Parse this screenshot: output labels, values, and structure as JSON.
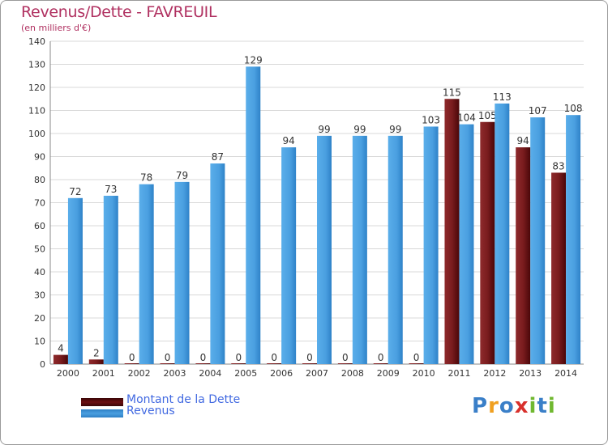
{
  "header": {
    "title": "Revenus/Dette - FAVREUIL",
    "subtitle": "(en milliers d'€)"
  },
  "legend": {
    "items": [
      {
        "label": "Montant de la Dette",
        "color": "#6b0f12"
      },
      {
        "label": "Revenus",
        "color": "#4a9fe0"
      }
    ]
  },
  "logo": {
    "text": "Proxiti",
    "letter_colors": [
      "#3a7fc8",
      "#f0a020",
      "#3a7fc8",
      "#d8302c",
      "#70b830",
      "#3a7fc8",
      "#70b830"
    ]
  },
  "chart_data": {
    "type": "bar",
    "title": "Revenus/Dette - FAVREUIL",
    "subtitle": "(en milliers d'€)",
    "xlabel": "",
    "ylabel": "",
    "ylim": [
      0,
      140
    ],
    "yticks": [
      0,
      10,
      20,
      30,
      40,
      50,
      60,
      70,
      80,
      90,
      100,
      110,
      120,
      130,
      140
    ],
    "grid": true,
    "legend_position": "bottom-left",
    "categories": [
      "2000",
      "2001",
      "2002",
      "2003",
      "2004",
      "2005",
      "2006",
      "2007",
      "2008",
      "2009",
      "2010",
      "2011",
      "2012",
      "2013",
      "2014"
    ],
    "series": [
      {
        "name": "Montant de la Dette",
        "color": "#6b0f12",
        "values": [
          4,
          2,
          0,
          0,
          0,
          0,
          0,
          0,
          0,
          0,
          0,
          115,
          105,
          94,
          83
        ]
      },
      {
        "name": "Revenus",
        "color": "#4a9fe0",
        "values": [
          72,
          73,
          78,
          79,
          87,
          129,
          94,
          99,
          99,
          99,
          103,
          104,
          113,
          107,
          108
        ]
      }
    ]
  }
}
